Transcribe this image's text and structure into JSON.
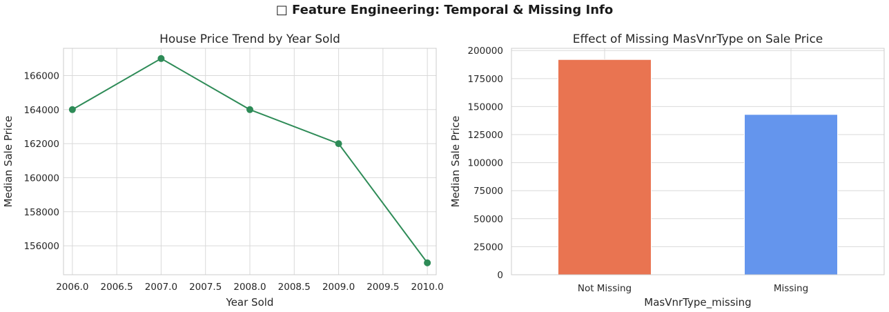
{
  "suptitle": "□ Feature Engineering: Temporal & Missing Info",
  "chart_data": [
    {
      "type": "line",
      "title": "House Price Trend by Year Sold",
      "xlabel": "Year Sold",
      "ylabel": "Median Sale Price",
      "x": [
        2006,
        2007,
        2008,
        2009,
        2010
      ],
      "series": [
        {
          "values": [
            164000,
            167000,
            164000,
            162000,
            155000
          ],
          "color": "#2e8b57"
        }
      ],
      "xticks": [
        "2006.0",
        "2006.5",
        "2007.0",
        "2007.5",
        "2008.0",
        "2008.5",
        "2009.0",
        "2009.5",
        "2010.0"
      ],
      "yticks": [
        "156000",
        "158000",
        "160000",
        "162000",
        "164000",
        "166000"
      ],
      "xlim": [
        2005.9,
        2010.1
      ],
      "ylim": [
        154300,
        167600
      ],
      "grid": true
    },
    {
      "type": "bar",
      "title": "Effect of Missing MasVnrType on Sale Price",
      "xlabel": "MasVnrType_missing",
      "ylabel": "Median Sale Price",
      "categories": [
        "Not Missing",
        "Missing"
      ],
      "values": [
        192000,
        143000
      ],
      "colors": [
        "#e97451",
        "#6495ed"
      ],
      "yticks": [
        "0",
        "25000",
        "50000",
        "75000",
        "100000",
        "125000",
        "150000",
        "175000",
        "200000"
      ],
      "ylim": [
        0,
        202000
      ],
      "grid": true
    }
  ]
}
